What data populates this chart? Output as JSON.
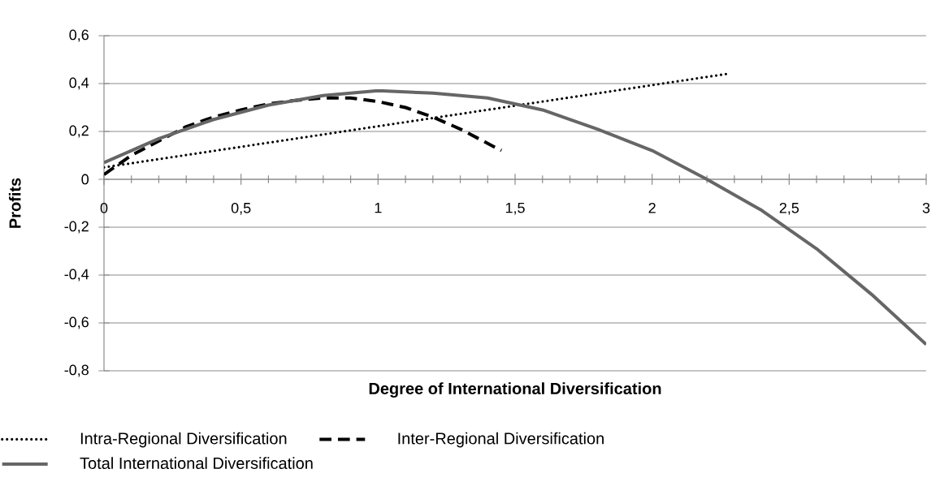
{
  "chart_data": {
    "type": "line",
    "xlabel": "Degree of International Diversification",
    "ylabel": "Profits",
    "xlim": [
      0,
      3
    ],
    "ylim": [
      -0.8,
      0.6
    ],
    "xticks": [
      0,
      {
        "value": 0.5,
        "label": "0,5"
      },
      1,
      {
        "value": 1.5,
        "label": "1,5"
      },
      2,
      {
        "value": 2.5,
        "label": "2,5"
      },
      3
    ],
    "yticks": [
      {
        "value": -0.8,
        "label": "-0,8"
      },
      {
        "value": -0.6,
        "label": "-0,6"
      },
      {
        "value": -0.4,
        "label": "-0,4"
      },
      {
        "value": -0.2,
        "label": "-0,2"
      },
      0,
      {
        "value": 0.2,
        "label": "0,2"
      },
      {
        "value": 0.4,
        "label": "0,4"
      },
      {
        "value": 0.6,
        "label": "0,6"
      }
    ],
    "grid": "y",
    "legend": "bottom",
    "series": [
      {
        "name": "Intra-Regional Diversification",
        "color": "#000000",
        "line_style": "dotted",
        "x": [
          0,
          2.27
        ],
        "values": [
          0.05,
          0.44
        ]
      },
      {
        "name": "Inter-Regional Diversification",
        "color": "#000000",
        "line_style": "dashed",
        "x": [
          0,
          0.1,
          0.2,
          0.3,
          0.4,
          0.5,
          0.6,
          0.7,
          0.8,
          0.9,
          1.0,
          1.1,
          1.2,
          1.3,
          1.4,
          1.45
        ],
        "values": [
          0.02,
          0.1,
          0.16,
          0.22,
          0.26,
          0.29,
          0.315,
          0.33,
          0.34,
          0.34,
          0.325,
          0.3,
          0.26,
          0.21,
          0.15,
          0.12
        ]
      },
      {
        "name": "Total International Diversification",
        "color": "#666666",
        "line_style": "solid",
        "x": [
          0,
          0.2,
          0.4,
          0.6,
          0.8,
          1.0,
          1.2,
          1.4,
          1.6,
          1.8,
          2.0,
          2.2,
          2.4,
          2.6,
          2.8,
          3.0
        ],
        "values": [
          0.07,
          0.17,
          0.25,
          0.31,
          0.35,
          0.37,
          0.36,
          0.34,
          0.29,
          0.21,
          0.12,
          0.0,
          -0.13,
          -0.29,
          -0.48,
          -0.69
        ]
      }
    ]
  }
}
